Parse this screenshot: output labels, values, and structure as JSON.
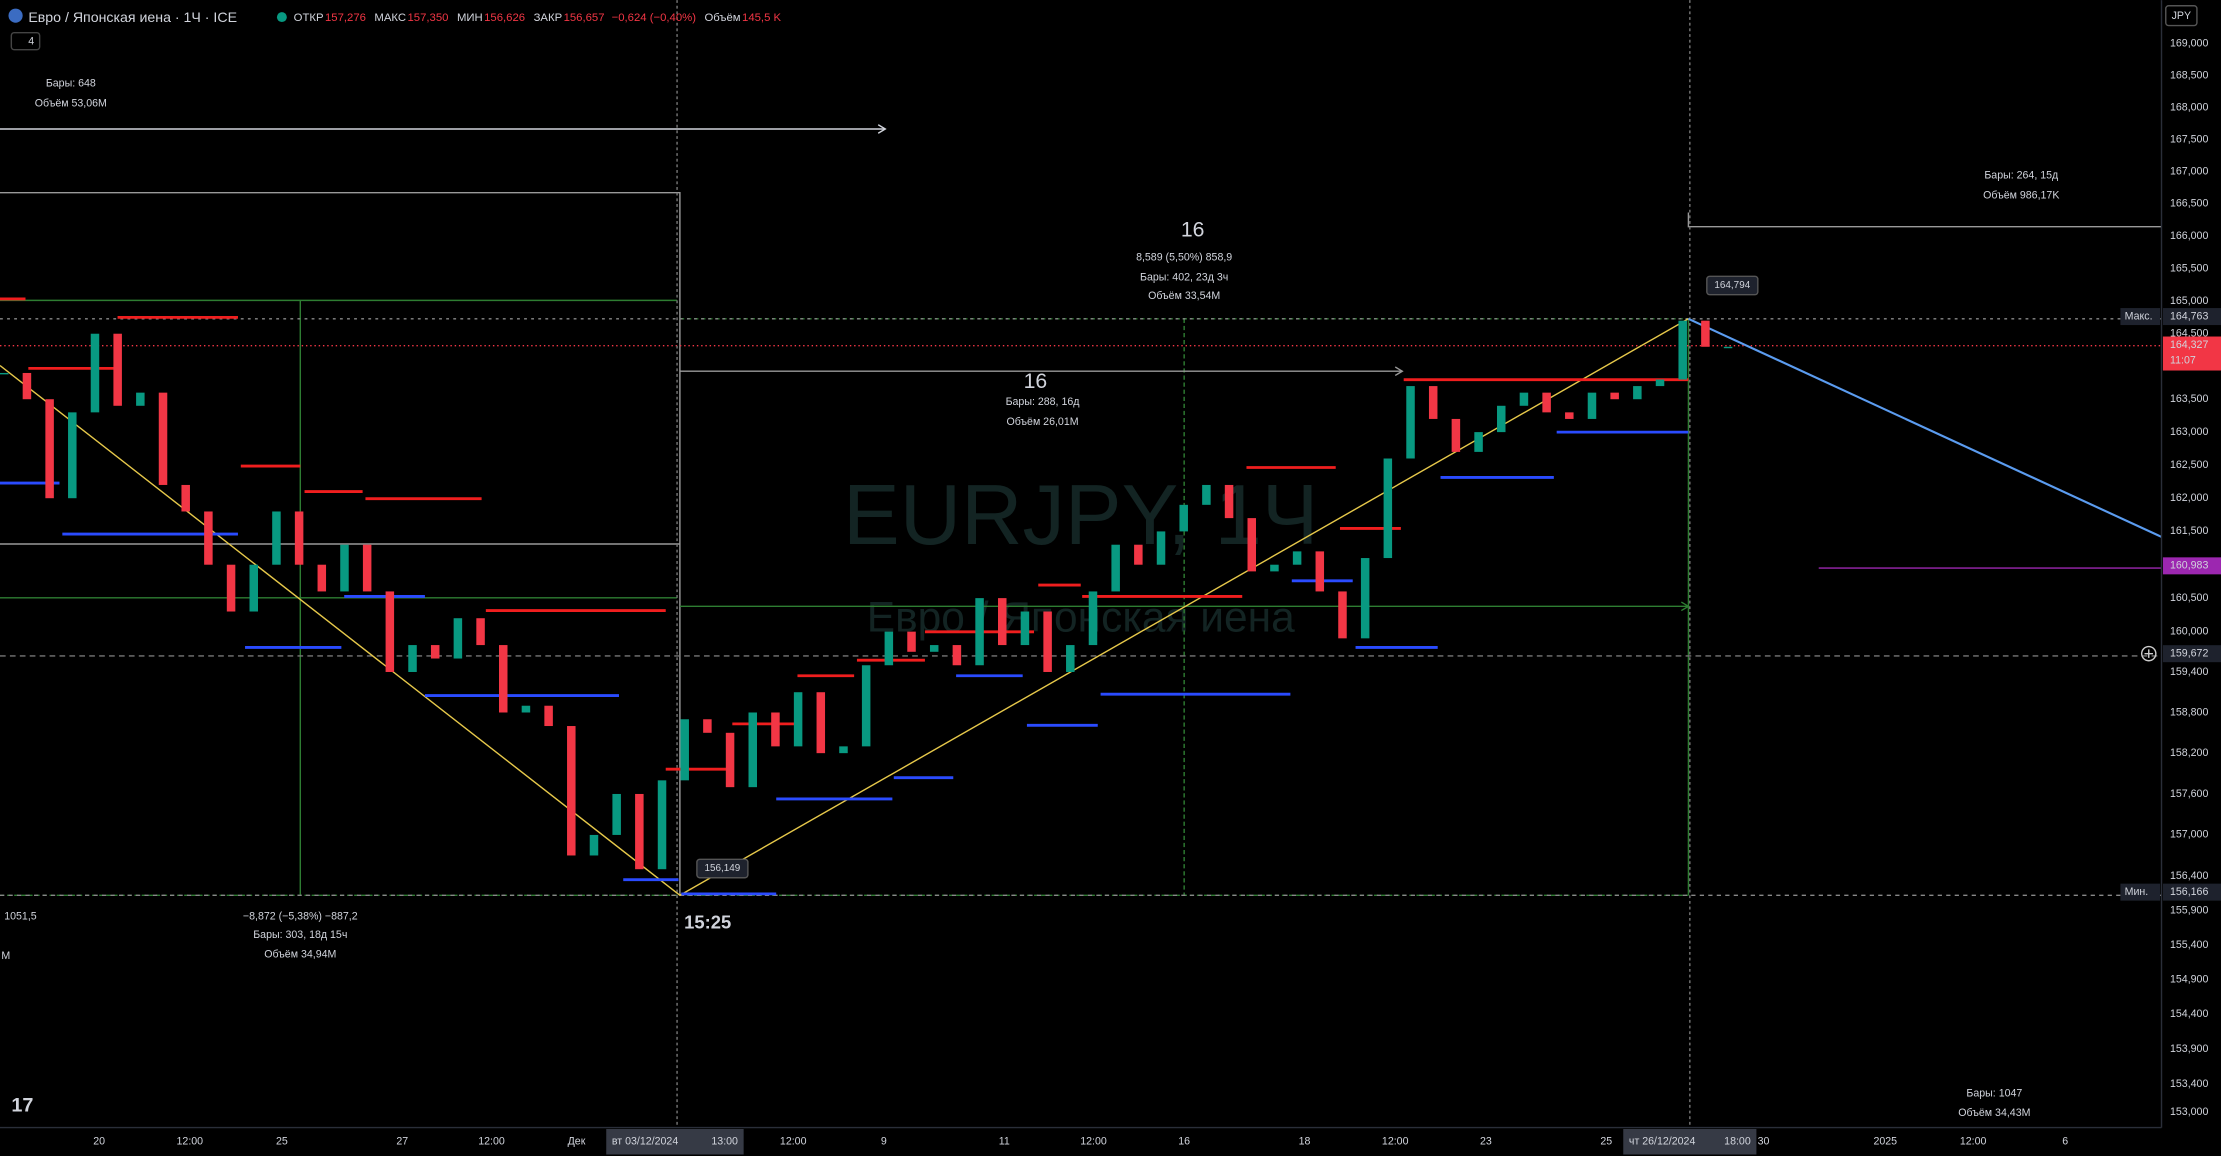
{
  "chart_data": {
    "type": "candlestick",
    "title": "Евро / Японская иена · 1Ч · ICE",
    "legend": [
      [
        "ОТКР",
        "157,276"
      ],
      [
        "МАКС",
        "157,350"
      ],
      [
        "МИН",
        "156,626"
      ],
      [
        "ЗАКР",
        "156,657"
      ]
    ],
    "change": "−0,624 (−0,40%)",
    "volume_label": "Объём",
    "volume": "145,5 K",
    "indicator_count": "4",
    "currency": "JPY",
    "watermark": "EURJPY, 1Ч",
    "watermark_subtitle": "Евро / Японская иена",
    "log_scale": true,
    "ylim": [
      152.78,
      169.69
    ],
    "yticks": [
      {
        "value": 169,
        "label": "169,000"
      },
      {
        "value": 168.5,
        "label": "168,500"
      },
      {
        "value": 168,
        "label": "168,000"
      },
      {
        "value": 167.5,
        "label": "167,500"
      },
      {
        "value": 167,
        "label": "167,000"
      },
      {
        "value": 166.5,
        "label": "166,500"
      },
      {
        "value": 166,
        "label": "166,000"
      },
      {
        "value": 165.5,
        "label": "165,500"
      },
      {
        "value": 165,
        "label": "165,000"
      },
      {
        "value": 164.5,
        "label": "164,500"
      },
      {
        "value": 163.5,
        "label": "163,500"
      },
      {
        "value": 163,
        "label": "163,000"
      },
      {
        "value": 162.5,
        "label": "162,500"
      },
      {
        "value": 162,
        "label": "162,000"
      },
      {
        "value": 161.5,
        "label": "161,500"
      },
      {
        "value": 160.5,
        "label": "160,500"
      },
      {
        "value": 160,
        "label": "160,000"
      },
      {
        "value": 159.4,
        "label": "159,400"
      },
      {
        "value": 158.8,
        "label": "158,800"
      },
      {
        "value": 158.2,
        "label": "158,200"
      },
      {
        "value": 157.6,
        "label": "157,600"
      },
      {
        "value": 157,
        "label": "157,000"
      },
      {
        "value": 156.4,
        "label": "156,400"
      },
      {
        "value": 155.9,
        "label": "155,900"
      },
      {
        "value": 155.4,
        "label": "155,400"
      },
      {
        "value": 154.9,
        "label": "154,900"
      },
      {
        "value": 154.4,
        "label": "154,400"
      },
      {
        "value": 153.9,
        "label": "153,900"
      },
      {
        "value": 153.4,
        "label": "153,400"
      },
      {
        "value": 153,
        "label": "153,000"
      }
    ],
    "xaxis_labels": [
      "20",
      "12:00",
      "25",
      "27",
      "12:00",
      "Дек",
      "12:00",
      "9",
      "11",
      "12:00",
      "16",
      "18",
      "12:00",
      "23",
      "25",
      "30",
      "2025",
      "12:00",
      "6"
    ],
    "crosshair_dates": [
      [
        "вт 03/12/2024",
        "13:00"
      ],
      [
        "чт 26/12/2024",
        "18:00"
      ]
    ],
    "price_tags": [
      {
        "caption": "Макс.",
        "value": 164.763,
        "label": "164,763"
      },
      {
        "value": 164.327,
        "label": "164,327",
        "countdown": "11:07"
      },
      {
        "value": 160.983,
        "label": "160,983"
      },
      {
        "value": 159.672,
        "label": "159,672"
      },
      {
        "caption": "Мин.",
        "value": 156.166,
        "label": "156,166"
      }
    ],
    "point_labels": [
      {
        "value": 164.794,
        "label": "164,794"
      },
      {
        "value": 156.149,
        "label": "156,149"
      }
    ],
    "colors": {
      "up": "#089981",
      "down": "#f23645"
    },
    "values": [
      163.9,
      163.5,
      162.0,
      163.3,
      164.5,
      163.4,
      163.6,
      162.2,
      161.8,
      161.0,
      160.3,
      161.0,
      161.8,
      161.0,
      160.6,
      161.3,
      160.6,
      159.4,
      159.8,
      159.6,
      160.2,
      159.8,
      158.8,
      158.9,
      158.6,
      156.7,
      157.0,
      157.6,
      156.5,
      157.8,
      158.7,
      158.5,
      157.7,
      158.8,
      158.3,
      159.1,
      158.2,
      158.3,
      159.5,
      160.0,
      159.7,
      159.8,
      159.5,
      160.5,
      159.8,
      160.3,
      159.4,
      159.8,
      160.6,
      161.3,
      161.0,
      161.5,
      161.9,
      162.2,
      161.7,
      160.9,
      161.0,
      161.2,
      160.6,
      159.9,
      161.1,
      162.6,
      163.7,
      163.2,
      162.7,
      163.0,
      163.4,
      163.6,
      163.3,
      163.2,
      163.6,
      163.5,
      163.7,
      163.8,
      164.7,
      164.3,
      164.3
    ],
    "annotations": [
      "Бары: 648",
      "Объём 53,06M",
      "1051,5",
      "M",
      "−8,872 (−5,38%) −887,2",
      "Бары: 303, 18д 15ч",
      "Объём 34,94M",
      "15:25",
      "16",
      "8,589 (5,50%) 858,9",
      "Бары: 402, 23д 3ч",
      "Объём 33,54M",
      "16",
      "Бары: 288, 16д",
      "Объём 26,01M",
      "Бары: 264, 15д",
      "Объём 986,17K",
      "Бары: 1047",
      "Объём 34,43M"
    ]
  }
}
